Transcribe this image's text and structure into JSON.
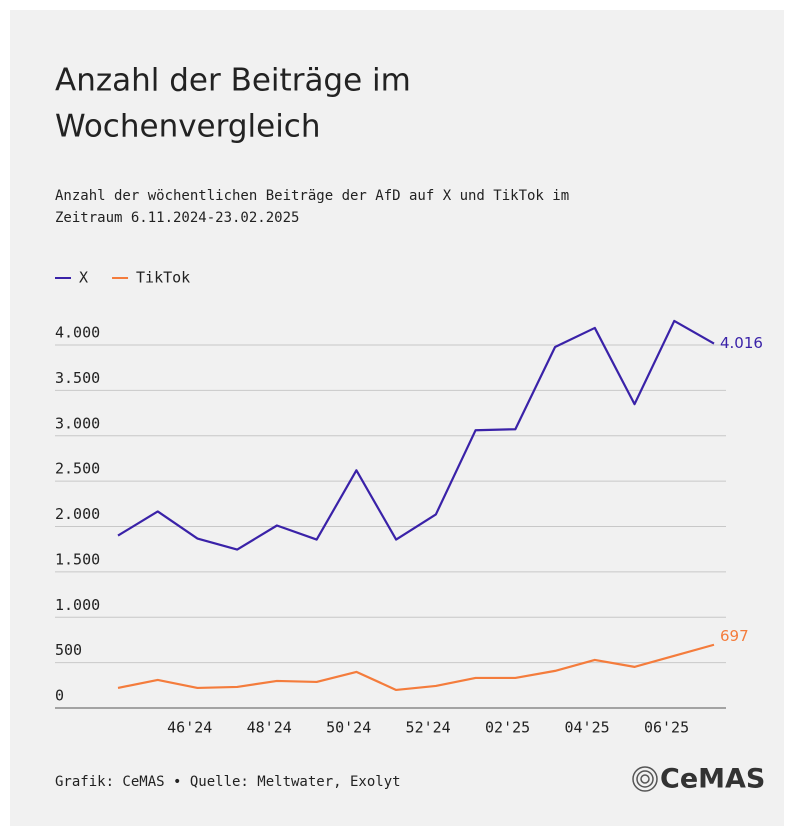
{
  "chart_data": {
    "type": "line",
    "title": [
      "Anzahl der Beiträge im",
      "Wochenvergleich"
    ],
    "subtitle": [
      "Anzahl der wöchentlichen Beiträge der AfD auf X und TikTok im",
      "Zeitraum 6.11.2024-23.02.2025"
    ],
    "categories": [
      null,
      "46'24",
      null,
      "48'24",
      null,
      "50'24",
      null,
      "52'24",
      null,
      "02'25",
      null,
      "04'25",
      null,
      "06'25",
      null,
      null
    ],
    "series": [
      {
        "name": "X",
        "color": "#3a22a8",
        "values": [
          1900,
          2166,
          1867,
          1746,
          2011,
          1856,
          2619,
          1856,
          2133,
          3061,
          3072,
          3978,
          4188,
          3348,
          4265,
          4016
        ],
        "value_labels": [
          null,
          null,
          null,
          null,
          null,
          null,
          null,
          null,
          null,
          null,
          null,
          null,
          null,
          null,
          null,
          "4.016"
        ]
      },
      {
        "name": "TikTok",
        "color": "#f47c3c",
        "values": [
          221,
          309,
          221,
          232,
          298,
          287,
          398,
          199,
          243,
          331,
          331,
          409,
          530,
          453,
          575,
          697
        ],
        "value_labels": [
          null,
          null,
          null,
          null,
          null,
          null,
          null,
          null,
          null,
          null,
          null,
          null,
          null,
          null,
          null,
          "697"
        ]
      }
    ],
    "ylim": [
      0,
      4000
    ],
    "yticks": [
      0,
      500,
      {
        "value": 1000,
        "label": "1.000"
      },
      {
        "value": 1500,
        "label": "1.500"
      },
      {
        "value": 2000,
        "label": "2.000"
      },
      {
        "value": 2500,
        "label": "2.500"
      },
      {
        "value": 3000,
        "label": "3.000"
      },
      {
        "value": 3500,
        "label": "3.500"
      },
      {
        "value": 4000,
        "label": "4.000"
      }
    ],
    "grid": true,
    "legend": "top-left",
    "source": "Grafik: CeMAS • Quelle: Meltwater, Exolyt",
    "logo": "CeMAS"
  }
}
